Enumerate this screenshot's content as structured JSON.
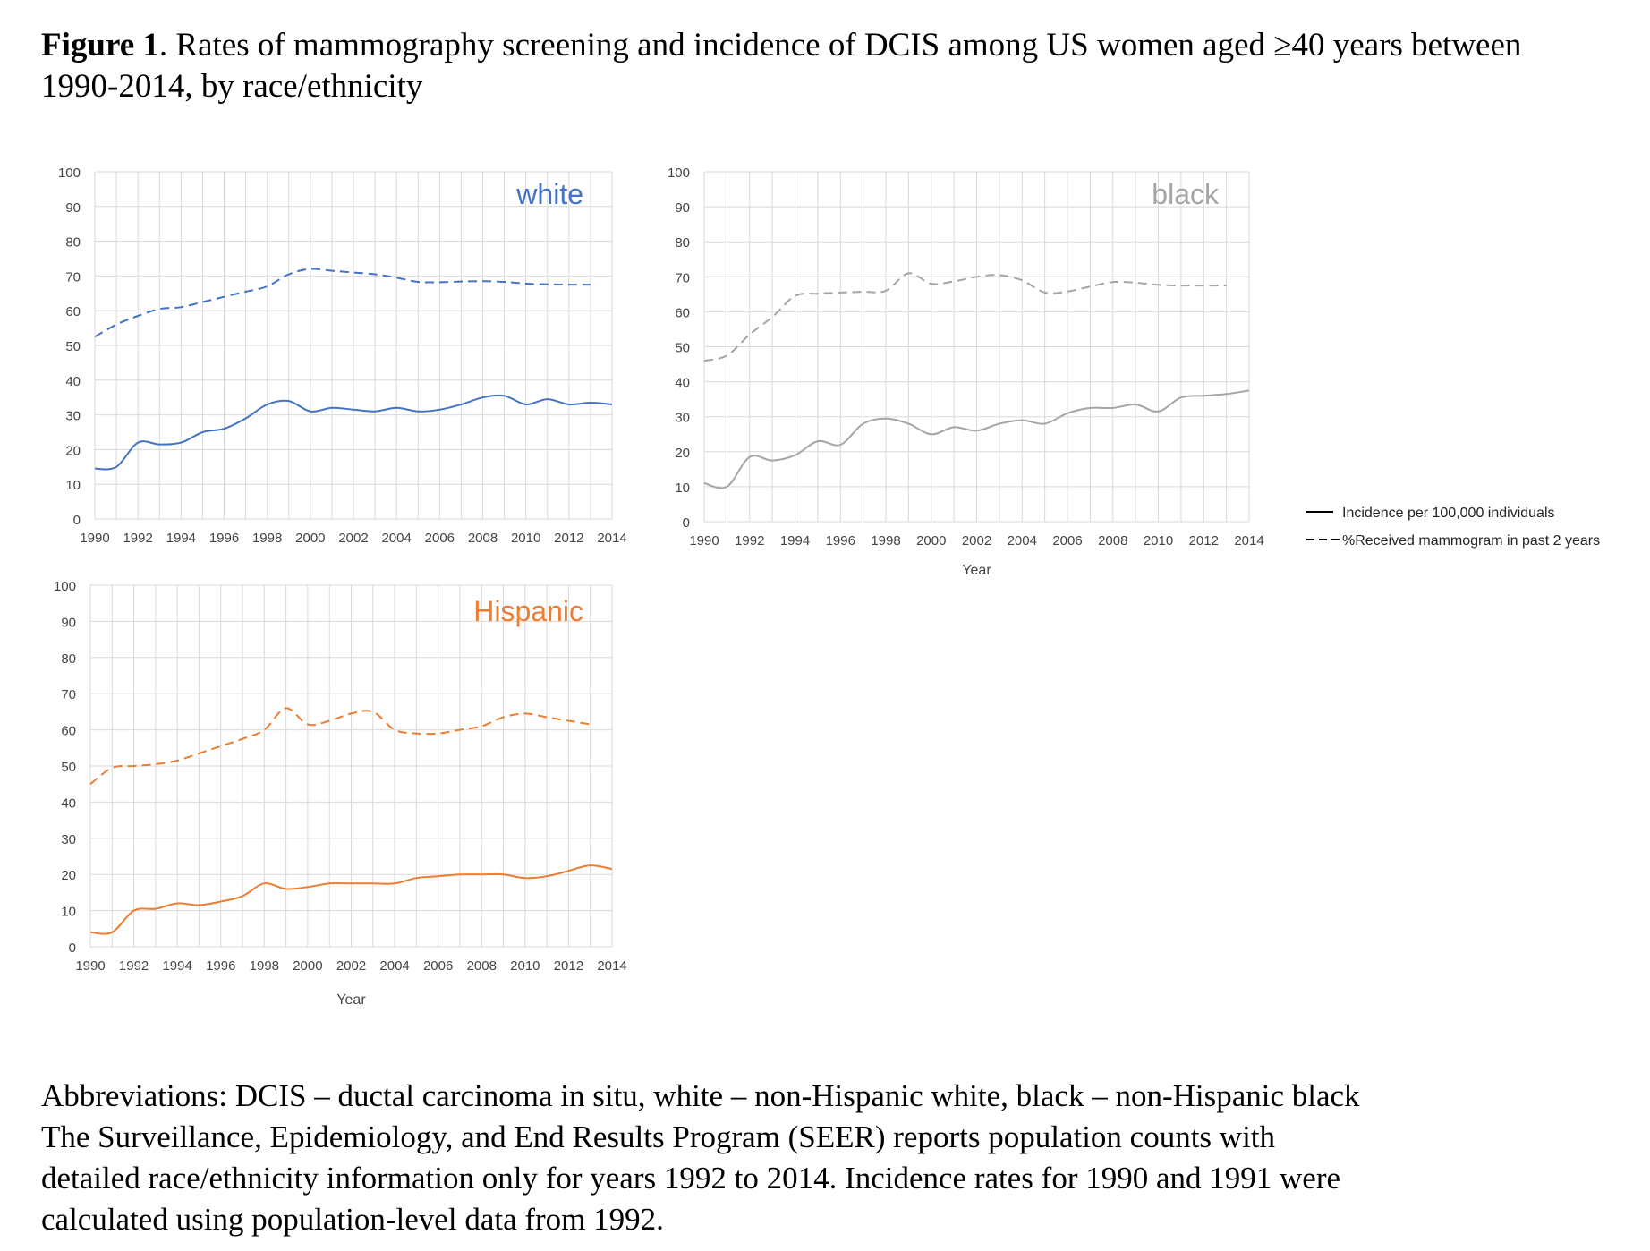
{
  "figure": {
    "label": "Figure 1",
    "caption": ". Rates of mammography screening and incidence of DCIS among US women aged ≥40 years between 1990-2014, by race/ethnicity"
  },
  "legend": {
    "incidence": "Incidence per 100,000 individuals",
    "mammogram": "%Received mammogram in past 2 years"
  },
  "notes": [
    "Abbreviations: DCIS – ductal carcinoma in situ, white – non-Hispanic white, black – non-Hispanic black",
    "The Surveillance, Epidemiology, and End Results Program (SEER) reports population counts with",
    "detailed race/ethnicity information only for years 1992 to 2014. Incidence rates for 1990 and 1991 were",
    "calculated using population-level data from 1992."
  ],
  "chart_data": [
    {
      "type": "line",
      "title": "white",
      "color": "#4472C4",
      "xlabel": "",
      "ylabel": "",
      "xlim": [
        1990,
        2014
      ],
      "ylim": [
        0,
        100
      ],
      "x_ticks": [
        "1990",
        "1992",
        "1994",
        "1996",
        "1998",
        "2000",
        "2002",
        "2004",
        "2006",
        "2008",
        "2010",
        "2012",
        "2014"
      ],
      "y_ticks": [
        0,
        10,
        20,
        30,
        40,
        50,
        60,
        70,
        80,
        90,
        100
      ],
      "grid": true,
      "series": [
        {
          "key": "incidence",
          "style": "solid",
          "x": [
            1990,
            1991,
            1992,
            1993,
            1994,
            1995,
            1996,
            1997,
            1998,
            1999,
            2000,
            2001,
            2002,
            2003,
            2004,
            2005,
            2006,
            2007,
            2008,
            2009,
            2010,
            2011,
            2012,
            2013,
            2014
          ],
          "y": [
            14.5,
            15,
            22,
            21.5,
            22,
            25,
            26,
            29,
            33,
            34,
            31,
            32,
            31.5,
            31,
            32,
            31,
            31.5,
            33,
            35,
            35.5,
            33,
            34.5,
            33,
            33.5,
            33
          ]
        },
        {
          "key": "mammogram",
          "style": "dashed",
          "x": [
            1990,
            1991,
            1992,
            1993,
            1994,
            1995,
            1996,
            1997,
            1998,
            1999,
            2000,
            2001,
            2002,
            2003,
            2004,
            2005,
            2006,
            2007,
            2008,
            2009,
            2010,
            2011,
            2012,
            2013
          ],
          "y": [
            52.5,
            56,
            58.5,
            60.5,
            61,
            62.5,
            64,
            65.5,
            67,
            70.5,
            72,
            71.5,
            71,
            70.5,
            69.5,
            68.3,
            68.2,
            68.4,
            68.5,
            68.3,
            67.8,
            67.6,
            67.5,
            67.5
          ]
        }
      ]
    },
    {
      "type": "line",
      "title": "black",
      "color": "#A5A5A5",
      "xlabel": "Year",
      "ylabel": "",
      "xlim": [
        1990,
        2014
      ],
      "ylim": [
        0,
        100
      ],
      "x_ticks": [
        "1990",
        "1992",
        "1994",
        "1996",
        "1998",
        "2000",
        "2002",
        "2004",
        "2006",
        "2008",
        "2010",
        "2012",
        "2014"
      ],
      "y_ticks": [
        0,
        10,
        20,
        30,
        40,
        50,
        60,
        70,
        80,
        90,
        100
      ],
      "grid": true,
      "series": [
        {
          "key": "incidence",
          "style": "solid",
          "x": [
            1990,
            1991,
            1992,
            1993,
            1994,
            1995,
            1996,
            1997,
            1998,
            1999,
            2000,
            2001,
            2002,
            2003,
            2004,
            2005,
            2006,
            2007,
            2008,
            2009,
            2010,
            2011,
            2012,
            2013,
            2014
          ],
          "y": [
            11,
            10,
            18.5,
            17.5,
            19,
            23,
            22,
            28,
            29.5,
            28,
            25,
            27,
            26,
            28,
            29,
            28,
            31,
            32.5,
            32.5,
            33.5,
            31.5,
            35.5,
            36,
            36.5,
            37.5
          ]
        },
        {
          "key": "mammogram",
          "style": "dashed",
          "x": [
            1990,
            1991,
            1992,
            1993,
            1994,
            1995,
            1996,
            1997,
            1998,
            1999,
            2000,
            2001,
            2002,
            2003,
            2004,
            2005,
            2006,
            2007,
            2008,
            2009,
            2010,
            2011,
            2012,
            2013
          ],
          "y": [
            46,
            47.5,
            53.5,
            58.5,
            64.5,
            65.2,
            65.5,
            65.7,
            66,
            71,
            68,
            68.7,
            70,
            70.5,
            69,
            65.5,
            65.8,
            67.2,
            68.5,
            68.3,
            67.7,
            67.5,
            67.5,
            67.5
          ]
        }
      ]
    },
    {
      "type": "line",
      "title": "Hispanic",
      "color": "#ED7D31",
      "xlabel": "Year",
      "ylabel": "",
      "xlim": [
        1990,
        2014
      ],
      "ylim": [
        0,
        100
      ],
      "x_ticks": [
        "1990",
        "1992",
        "1994",
        "1996",
        "1998",
        "2000",
        "2002",
        "2004",
        "2006",
        "2008",
        "2010",
        "2012",
        "2014"
      ],
      "y_ticks": [
        0,
        10,
        20,
        30,
        40,
        50,
        60,
        70,
        80,
        90,
        100
      ],
      "grid": true,
      "series": [
        {
          "key": "incidence",
          "style": "solid",
          "x": [
            1990,
            1991,
            1992,
            1993,
            1994,
            1995,
            1996,
            1997,
            1998,
            1999,
            2000,
            2001,
            2002,
            2003,
            2004,
            2005,
            2006,
            2007,
            2008,
            2009,
            2010,
            2011,
            2012,
            2013,
            2014
          ],
          "y": [
            4,
            4,
            10,
            10.5,
            12,
            11.5,
            12.5,
            14,
            17.5,
            16,
            16.5,
            17.5,
            17.5,
            17.5,
            17.5,
            19,
            19.5,
            20,
            20,
            20,
            19,
            19.5,
            21,
            22.5,
            21.5
          ]
        },
        {
          "key": "mammogram",
          "style": "dashed",
          "x": [
            1990,
            1991,
            1992,
            1993,
            1994,
            1995,
            1996,
            1997,
            1998,
            1999,
            2000,
            2001,
            2002,
            2003,
            2004,
            2005,
            2006,
            2007,
            2008,
            2009,
            2010,
            2011,
            2012,
            2013
          ],
          "y": [
            45,
            49.5,
            50,
            50.5,
            51.5,
            53.5,
            55.5,
            57.5,
            60,
            66,
            61.5,
            62.5,
            64.5,
            65,
            60,
            59,
            59,
            60,
            61,
            63.5,
            64.5,
            63.5,
            62.5,
            61.5
          ]
        }
      ]
    }
  ]
}
